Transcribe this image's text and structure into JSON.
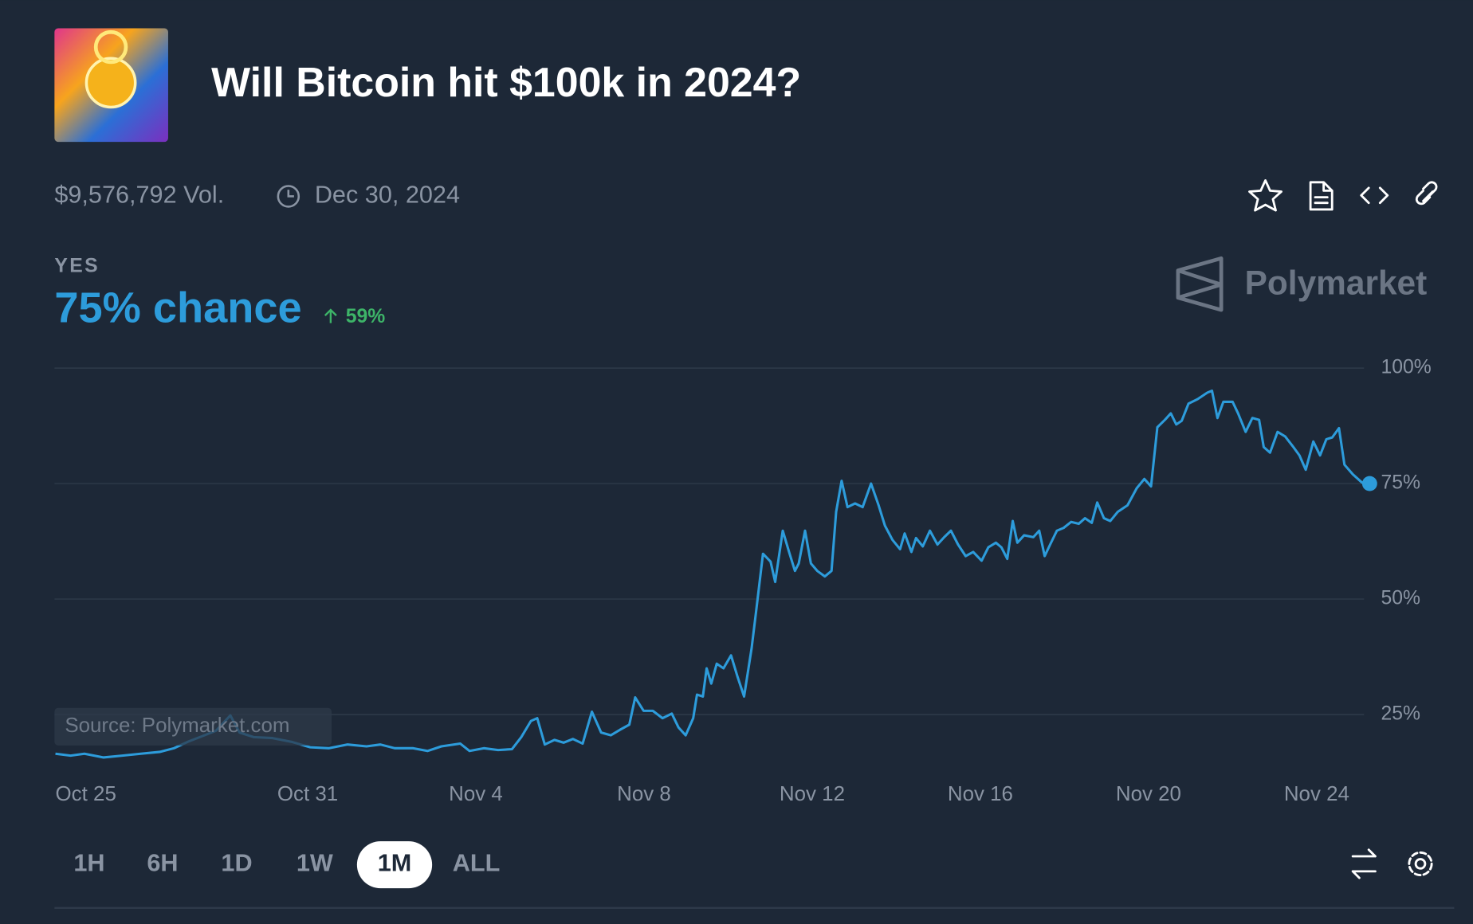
{
  "header": {
    "title": "Will Bitcoin hit $100k in 2024?",
    "volume": "$9,576,792 Vol.",
    "end_date": "Dec 30, 2024",
    "outcome": "YES",
    "chance": "75% chance",
    "change": "59%",
    "brand": "Polymarket"
  },
  "chart_data": {
    "type": "line",
    "color": "#2d9cdb",
    "grid": true,
    "source": "Source: Polymarket.com",
    "xlim": [
      0,
      31.26
    ],
    "xticks": [
      {
        "value": 0,
        "label": "Oct 25"
      },
      {
        "value": 6,
        "label": "Oct 31"
      },
      {
        "value": 10,
        "label": "Nov 4"
      },
      {
        "value": 14,
        "label": "Nov 8"
      },
      {
        "value": 18,
        "label": "Nov 12"
      },
      {
        "value": 22,
        "label": "Nov 16"
      },
      {
        "value": 26,
        "label": "Nov 20"
      },
      {
        "value": 30,
        "label": "Nov 24"
      }
    ],
    "ylim": [
      13,
      100
    ],
    "yticks": [
      {
        "value": 25,
        "label": "25%"
      },
      {
        "value": 50,
        "label": "50%"
      },
      {
        "value": 75,
        "label": "75%"
      },
      {
        "value": 100,
        "label": "100%"
      }
    ],
    "x": [
      0,
      0.36,
      0.69,
      1.14,
      1.59,
      2.03,
      2.48,
      2.82,
      3.15,
      3.49,
      3.82,
      4.16,
      4.38,
      4.72,
      5.16,
      5.61,
      6.06,
      6.5,
      6.95,
      7.4,
      7.73,
      8.07,
      8.51,
      8.85,
      9.18,
      9.63,
      9.85,
      10.19,
      10.53,
      10.86,
      11.08,
      11.31,
      11.46,
      11.64,
      11.87,
      12.09,
      12.31,
      12.54,
      12.76,
      12.98,
      13.21,
      13.43,
      13.65,
      13.79,
      13.99,
      14.21,
      14.44,
      14.66,
      14.82,
      14.99,
      15.17,
      15.26,
      15.4,
      15.49,
      15.6,
      15.73,
      15.89,
      16.07,
      16.22,
      16.38,
      16.56,
      16.67,
      16.83,
      17.01,
      17.12,
      17.3,
      17.45,
      17.59,
      17.68,
      17.83,
      17.97,
      18.12,
      18.3,
      18.46,
      18.57,
      18.7,
      18.84,
      19.02,
      19.2,
      19.4,
      19.58,
      19.73,
      19.91,
      20.09,
      20.2,
      20.36,
      20.47,
      20.63,
      20.8,
      20.98,
      21.14,
      21.3,
      21.47,
      21.65,
      21.83,
      22.03,
      22.19,
      22.37,
      22.5,
      22.64,
      22.77,
      22.88,
      23.04,
      23.26,
      23.4,
      23.53,
      23.66,
      23.82,
      23.98,
      24.16,
      24.34,
      24.49,
      24.65,
      24.78,
      24.94,
      25.09,
      25.27,
      25.5,
      25.72,
      25.9,
      26.06,
      26.21,
      26.39,
      26.53,
      26.66,
      26.79,
      26.95,
      27.17,
      27.4,
      27.51,
      27.64,
      27.78,
      28.0,
      28.13,
      28.31,
      28.47,
      28.63,
      28.74,
      28.89,
      29.07,
      29.25,
      29.43,
      29.59,
      29.74,
      29.92,
      30.08,
      30.23,
      30.37,
      30.53,
      30.66,
      30.86,
      31.08,
      31.26
    ],
    "values": [
      16.5,
      16.1,
      16.5,
      15.7,
      16.1,
      16.5,
      16.9,
      17.7,
      19.1,
      20.3,
      21.5,
      24.8,
      21.1,
      20.1,
      19.9,
      19.1,
      17.9,
      17.7,
      18.5,
      18.1,
      18.5,
      17.7,
      17.7,
      17.1,
      18.1,
      18.7,
      17.1,
      17.7,
      17.3,
      17.5,
      20.1,
      23.6,
      24.2,
      18.5,
      19.5,
      18.9,
      19.7,
      18.7,
      25.6,
      21.1,
      20.5,
      21.7,
      22.8,
      28.7,
      25.8,
      25.8,
      24.2,
      25.2,
      22.2,
      20.5,
      24.2,
      29.3,
      28.9,
      35.0,
      31.7,
      36.0,
      35.0,
      37.8,
      33.3,
      28.9,
      39.4,
      47.6,
      59.8,
      58.1,
      53.7,
      64.8,
      60.2,
      56.1,
      57.7,
      64.8,
      57.7,
      56.1,
      54.9,
      56.1,
      68.9,
      75.6,
      69.9,
      70.7,
      69.9,
      75.0,
      70.3,
      65.9,
      62.8,
      60.8,
      64.2,
      60.2,
      63.2,
      61.4,
      64.8,
      61.8,
      63.4,
      64.8,
      61.8,
      59.3,
      60.2,
      58.3,
      61.2,
      62.2,
      61.2,
      58.7,
      66.9,
      62.2,
      63.8,
      63.4,
      64.8,
      59.3,
      61.8,
      64.8,
      65.4,
      66.7,
      66.3,
      67.5,
      66.5,
      70.9,
      67.5,
      66.9,
      68.9,
      70.3,
      74.0,
      76.0,
      74.4,
      87.2,
      88.8,
      90.2,
      87.8,
      88.6,
      92.3,
      93.3,
      94.7,
      95.1,
      89.2,
      92.7,
      92.7,
      90.2,
      86.2,
      89.2,
      88.8,
      82.9,
      81.7,
      86.2,
      85.2,
      83.1,
      81.1,
      78.0,
      84.1,
      81.1,
      84.6,
      85.0,
      87.0,
      79.1,
      77.0,
      75.2,
      75.0
    ]
  },
  "controls": {
    "ranges": [
      "1H",
      "6H",
      "1D",
      "1W",
      "1M",
      "ALL"
    ],
    "active": 4
  }
}
